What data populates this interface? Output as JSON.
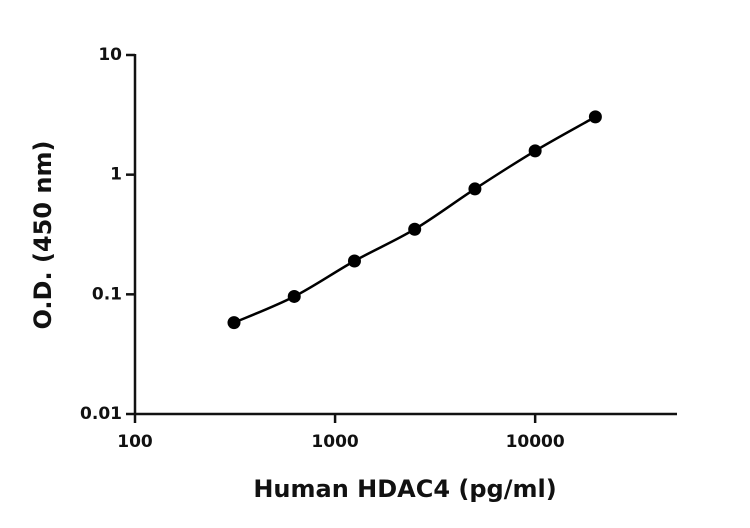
{
  "chart_data": {
    "type": "scatter",
    "x_label": "Human HDAC4 (pg/ml)",
    "y_label": "O.D. (450 nm)",
    "x": [
      312.5,
      625,
      1250,
      2500,
      5000,
      10000,
      20000
    ],
    "values": [
      0.058,
      0.096,
      0.19,
      0.35,
      0.76,
      1.58,
      3.04
    ],
    "color": "#000000",
    "fit_line": true,
    "xscale": "log",
    "yscale": "log",
    "xlim": [
      100,
      50000
    ],
    "ylim": [
      0.01,
      10
    ],
    "xticks": [
      100,
      1000,
      10000
    ],
    "yticks": [
      0.01,
      0.1,
      1,
      10
    ]
  }
}
